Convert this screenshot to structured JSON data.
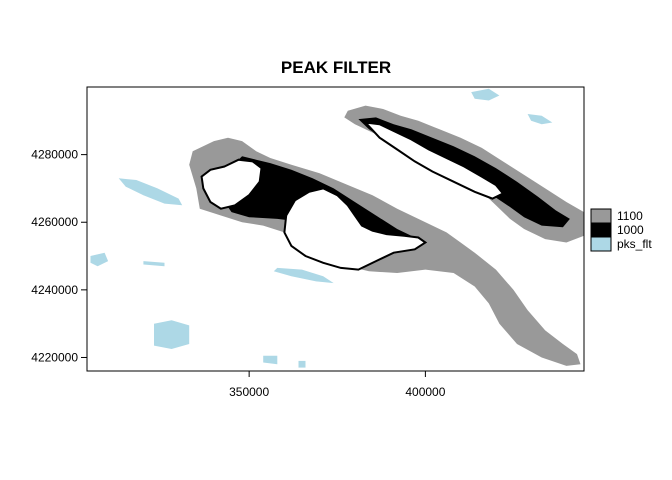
{
  "chart_data": {
    "type": "raster-map",
    "title": "PEAK FILTER",
    "xlabel": "",
    "ylabel": "",
    "xlim": [
      304000,
      445000
    ],
    "ylim": [
      4216000,
      4300000
    ],
    "x_ticks": [
      350000,
      400000
    ],
    "x_tick_labels": [
      "350000",
      "400000"
    ],
    "y_ticks": [
      4220000,
      4240000,
      4260000,
      4280000
    ],
    "y_tick_labels": [
      "4220000",
      "4240000",
      "4260000",
      "4280000"
    ],
    "grid": false,
    "legend_position": "right",
    "legend": [
      {
        "label": "1100",
        "color": "#999999"
      },
      {
        "label": "1000",
        "color": "#000000"
      },
      {
        "label": "pks_flt",
        "color": "#add8e6"
      }
    ],
    "layers": [
      {
        "name": "1100",
        "color": "#999999",
        "polygons": [
          [
            [
              340000,
              4284000
            ],
            [
              344000,
              4285000
            ],
            [
              348000,
              4284000
            ],
            [
              352000,
              4281000
            ],
            [
              356000,
              4279000
            ],
            [
              362000,
              4277000
            ],
            [
              370000,
              4274500
            ],
            [
              378000,
              4271000
            ],
            [
              385000,
              4268000
            ],
            [
              392000,
              4264000
            ],
            [
              400000,
              4260000
            ],
            [
              406000,
              4257000
            ],
            [
              410000,
              4254000
            ],
            [
              414000,
              4251000
            ],
            [
              420000,
              4246000
            ],
            [
              425000,
              4240000
            ],
            [
              429000,
              4234000
            ],
            [
              434000,
              4228000
            ],
            [
              439000,
              4224000
            ],
            [
              443000,
              4221000
            ],
            [
              444000,
              4218000
            ],
            [
              440000,
              4217500
            ],
            [
              433000,
              4220000
            ],
            [
              426000,
              4224000
            ],
            [
              421000,
              4230000
            ],
            [
              418000,
              4236000
            ],
            [
              414000,
              4241000
            ],
            [
              408000,
              4245000
            ],
            [
              400000,
              4246000
            ],
            [
              392000,
              4245000
            ],
            [
              384000,
              4245500
            ],
            [
              378000,
              4247000
            ],
            [
              372000,
              4250000
            ],
            [
              366000,
              4254000
            ],
            [
              360000,
              4257000
            ],
            [
              354000,
              4259000
            ],
            [
              348000,
              4260000
            ],
            [
              342000,
              4262000
            ],
            [
              336000,
              4264000
            ],
            [
              335000,
              4270000
            ],
            [
              333000,
              4277000
            ],
            [
              334000,
              4281000
            ]
          ]
        ]
      },
      {
        "name": "1100",
        "color": "#999999",
        "polygons": [
          [
            [
              378000,
              4293000
            ],
            [
              383000,
              4294500
            ],
            [
              388000,
              4293500
            ],
            [
              393000,
              4291500
            ],
            [
              398000,
              4290000
            ],
            [
              404000,
              4287500
            ],
            [
              410000,
              4285000
            ],
            [
              416000,
              4282000
            ],
            [
              422000,
              4278000
            ],
            [
              428000,
              4274000
            ],
            [
              434000,
              4270000
            ],
            [
              440000,
              4266000
            ],
            [
              445000,
              4263000
            ],
            [
              445000,
              4256000
            ],
            [
              440000,
              4254000
            ],
            [
              434000,
              4255000
            ],
            [
              428000,
              4258000
            ],
            [
              424000,
              4261000
            ],
            [
              420000,
              4265000
            ],
            [
              416000,
              4269000
            ],
            [
              410000,
              4272500
            ],
            [
              404000,
              4275500
            ],
            [
              398000,
              4278500
            ],
            [
              392000,
              4282000
            ],
            [
              386000,
              4286000
            ],
            [
              380000,
              4289000
            ],
            [
              377000,
              4291000
            ]
          ]
        ]
      },
      {
        "name": "1000",
        "color": "#000000",
        "polygons": [
          [
            [
              348000,
              4279500
            ],
            [
              352000,
              4278500
            ],
            [
              356000,
              4277500
            ],
            [
              362000,
              4275500
            ],
            [
              368000,
              4273000
            ],
            [
              374000,
              4270000
            ],
            [
              380000,
              4266000
            ],
            [
              386000,
              4262000
            ],
            [
              392000,
              4258000
            ],
            [
              396000,
              4256000
            ],
            [
              398000,
              4254000
            ],
            [
              393000,
              4253500
            ],
            [
              387000,
              4254500
            ],
            [
              380000,
              4256000
            ],
            [
              373000,
              4258000
            ],
            [
              366000,
              4260000
            ],
            [
              358000,
              4261000
            ],
            [
              350000,
              4261500
            ],
            [
              345000,
              4263000
            ],
            [
              343000,
              4266000
            ],
            [
              343000,
              4271000
            ],
            [
              344500,
              4276000
            ]
          ],
          [
            [
              381000,
              4290500
            ],
            [
              386000,
              4291000
            ],
            [
              391000,
              4289000
            ],
            [
              396000,
              4287500
            ],
            [
              402000,
              4285000
            ],
            [
              408000,
              4282500
            ],
            [
              414000,
              4279500
            ],
            [
              420000,
              4276000
            ],
            [
              426000,
              4272000
            ],
            [
              432000,
              4267500
            ],
            [
              437000,
              4263500
            ],
            [
              441000,
              4261000
            ],
            [
              439000,
              4258500
            ],
            [
              433000,
              4259000
            ],
            [
              428000,
              4261500
            ],
            [
              424000,
              4264500
            ],
            [
              419000,
              4268000
            ],
            [
              413000,
              4271000
            ],
            [
              407000,
              4274000
            ],
            [
              401000,
              4277000
            ],
            [
              395000,
              4280500
            ],
            [
              389000,
              4284000
            ],
            [
              384000,
              4287500
            ]
          ]
        ]
      },
      {
        "name": "peak-interior",
        "color": "#ffffff",
        "polygons": [
          [
            [
              343000,
              4276500
            ],
            [
              347000,
              4278500
            ],
            [
              351000,
              4278000
            ],
            [
              353500,
              4276000
            ],
            [
              353000,
              4272000
            ],
            [
              350000,
              4268000
            ],
            [
              346000,
              4265000
            ],
            [
              342000,
              4264000
            ],
            [
              339000,
              4266000
            ],
            [
              337000,
              4270000
            ],
            [
              336500,
              4273500
            ],
            [
              339000,
              4275500
            ]
          ],
          [
            [
              367000,
              4269000
            ],
            [
              371000,
              4270000
            ],
            [
              375000,
              4268000
            ],
            [
              378000,
              4265000
            ],
            [
              380000,
              4262000
            ],
            [
              382000,
              4259000
            ],
            [
              385000,
              4257500
            ],
            [
              389000,
              4256500
            ],
            [
              394000,
              4256000
            ],
            [
              398000,
              4255500
            ],
            [
              400000,
              4254000
            ],
            [
              397000,
              4252000
            ],
            [
              391000,
              4251000
            ],
            [
              386000,
              4248500
            ],
            [
              381000,
              4246000
            ],
            [
              376000,
              4246500
            ],
            [
              371000,
              4248000
            ],
            [
              366000,
              4250000
            ],
            [
              362000,
              4253000
            ],
            [
              360000,
              4257000
            ],
            [
              360500,
              4262000
            ],
            [
              363000,
              4266500
            ]
          ],
          [
            [
              383000,
              4289500
            ],
            [
              387000,
              4289000
            ],
            [
              391000,
              4287000
            ],
            [
              396000,
              4284500
            ],
            [
              401000,
              4281500
            ],
            [
              406000,
              4279000
            ],
            [
              411000,
              4276500
            ],
            [
              416000,
              4273500
            ],
            [
              420000,
              4271000
            ],
            [
              422000,
              4268500
            ],
            [
              419000,
              4267000
            ],
            [
              414000,
              4269000
            ],
            [
              408000,
              4272000
            ],
            [
              402000,
              4275000
            ],
            [
              397000,
              4278000
            ],
            [
              392000,
              4281500
            ],
            [
              387000,
              4285000
            ]
          ]
        ]
      },
      {
        "name": "pks_flt",
        "color": "#add8e6",
        "polygons": [
          [
            [
              413000,
              4298500
            ],
            [
              418000,
              4299500
            ],
            [
              421000,
              4297500
            ],
            [
              418000,
              4296000
            ],
            [
              414000,
              4296500
            ]
          ],
          [
            [
              429000,
              4292000
            ],
            [
              433000,
              4291500
            ],
            [
              436000,
              4289500
            ],
            [
              433000,
              4289000
            ],
            [
              430000,
              4290000
            ]
          ],
          [
            [
              313000,
              4273000
            ],
            [
              318000,
              4272500
            ],
            [
              324000,
              4270000
            ],
            [
              330000,
              4267000
            ],
            [
              331000,
              4265000
            ],
            [
              326000,
              4265500
            ],
            [
              320000,
              4268000
            ],
            [
              315000,
              4270500
            ]
          ],
          [
            [
              305000,
              4250000
            ],
            [
              309000,
              4251000
            ],
            [
              310000,
              4248500
            ],
            [
              307000,
              4247000
            ],
            [
              305000,
              4248000
            ]
          ],
          [
            [
              320000,
              4248500
            ],
            [
              326000,
              4248000
            ],
            [
              326000,
              4247000
            ],
            [
              320000,
              4247500
            ]
          ],
          [
            [
              358000,
              4246500
            ],
            [
              365000,
              4246000
            ],
            [
              371000,
              4244000
            ],
            [
              374000,
              4242000
            ],
            [
              369000,
              4242500
            ],
            [
              362000,
              4244000
            ],
            [
              357000,
              4245500
            ]
          ],
          [
            [
              323000,
              4230000
            ],
            [
              328000,
              4231000
            ],
            [
              333000,
              4229500
            ],
            [
              333000,
              4224000
            ],
            [
              328000,
              4222500
            ],
            [
              323000,
              4223500
            ]
          ],
          [
            [
              354000,
              4220500
            ],
            [
              358000,
              4220500
            ],
            [
              358000,
              4218000
            ],
            [
              354000,
              4218500
            ]
          ],
          [
            [
              364000,
              4219000
            ],
            [
              366000,
              4219000
            ],
            [
              366000,
              4217000
            ],
            [
              364000,
              4217000
            ]
          ]
        ]
      }
    ]
  }
}
